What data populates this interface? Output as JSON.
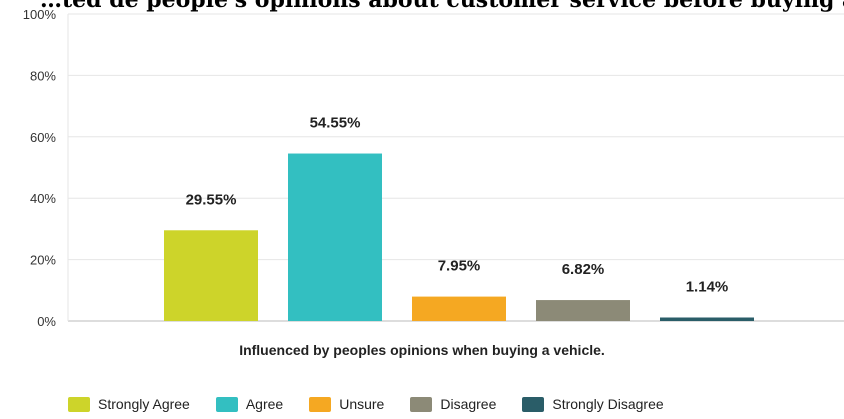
{
  "chart_data": {
    "type": "bar",
    "title": "…ted de people's opinions about customer service before buying a…",
    "xlabel": "Influenced by peoples opinions when buying a vehicle.",
    "ylabel": "",
    "ylim": [
      0,
      100
    ],
    "yticks": [
      "0%",
      "20%",
      "40%",
      "60%",
      "80%",
      "100%"
    ],
    "grid": true,
    "legend_position": "bottom",
    "categories": [
      "Strongly Agree",
      "Agree",
      "Unsure",
      "Disagree",
      "Strongly Disagree"
    ],
    "values": [
      29.55,
      54.55,
      7.95,
      6.82,
      1.14
    ],
    "data_labels": [
      "29.55%",
      "54.55%",
      "7.95%",
      "6.82%",
      "1.14%"
    ],
    "colors": [
      "#cdd42a",
      "#33bfc1",
      "#f5a822",
      "#8c8a77",
      "#2a5d68"
    ]
  }
}
